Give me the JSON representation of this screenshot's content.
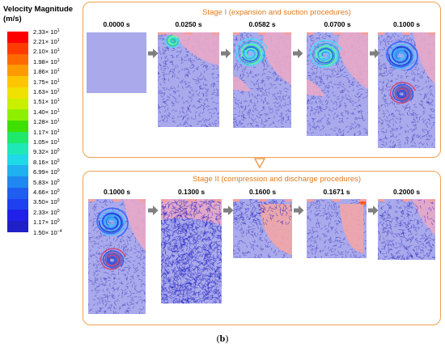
{
  "colorbar": {
    "title_line1": "Velocity Magnitude",
    "title_line2": "(m/s)",
    "colors": [
      "#ff0000",
      "#ff3b00",
      "#ff6a00",
      "#ff9a00",
      "#ffc600",
      "#f0e200",
      "#c8f000",
      "#8ef000",
      "#3ee000",
      "#1fe86a",
      "#1fe8b8",
      "#1fd8e8",
      "#1fb0f0",
      "#1f88f0",
      "#1f5ef0",
      "#1f40f0",
      "#1f20e8",
      "#2020c8"
    ],
    "labels": [
      {
        "m": "2.33",
        "e": "1"
      },
      {
        "m": "2.21",
        "e": "1"
      },
      {
        "m": "2.10",
        "e": "1"
      },
      {
        "m": "1.98",
        "e": "1"
      },
      {
        "m": "1.86",
        "e": "1"
      },
      {
        "m": "1.75",
        "e": "1"
      },
      {
        "m": "1.63",
        "e": "1"
      },
      {
        "m": "1.51",
        "e": "1"
      },
      {
        "m": "1.40",
        "e": "1"
      },
      {
        "m": "1.28",
        "e": "1"
      },
      {
        "m": "1.17",
        "e": "1"
      },
      {
        "m": "1.05",
        "e": "1"
      },
      {
        "m": "9.32",
        "e": "0"
      },
      {
        "m": "8.16",
        "e": "0"
      },
      {
        "m": "6.99",
        "e": "0"
      },
      {
        "m": "5.83",
        "e": "0"
      },
      {
        "m": "4.66",
        "e": "0"
      },
      {
        "m": "3.50",
        "e": "0"
      },
      {
        "m": "2.33",
        "e": "0"
      },
      {
        "m": "1.17",
        "e": "0"
      },
      {
        "m": "1.50",
        "e": "−4"
      }
    ]
  },
  "stage1": {
    "title": "Stage I (expansion and suction procedures)",
    "frames": [
      {
        "time": "0.0000 s",
        "kind": "empty"
      },
      {
        "time": "0.0250 s",
        "kind": "early"
      },
      {
        "time": "0.0582 s",
        "kind": "jet"
      },
      {
        "time": "0.0700 s",
        "kind": "jet"
      },
      {
        "time": "0.1000 s",
        "kind": "twin"
      }
    ]
  },
  "stage2": {
    "title": "Stage II (compression and discharge procedures)",
    "frames": [
      {
        "time": "0.1000 s",
        "kind": "twin"
      },
      {
        "time": "0.1300 s",
        "kind": "chaotic"
      },
      {
        "time": "0.1600 s",
        "kind": "pink"
      },
      {
        "time": "0.1671 s",
        "kind": "pink2"
      },
      {
        "time": "0.2000 s",
        "kind": "calm"
      }
    ]
  },
  "caption": {
    "open": "(",
    "letter": "b",
    "close": ")"
  }
}
